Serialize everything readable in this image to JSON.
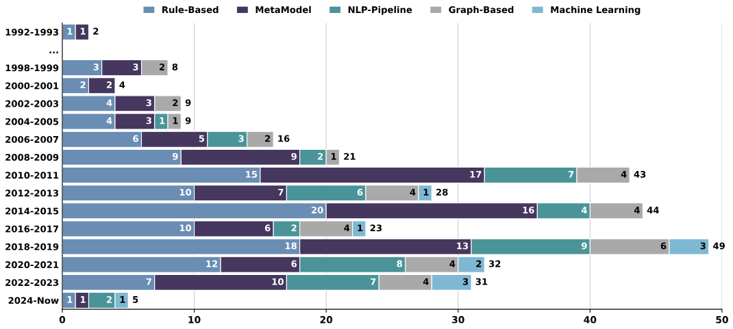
{
  "chart_data": {
    "type": "bar",
    "orientation": "horizontal",
    "stacked": true,
    "data_labels": true,
    "legend": "top",
    "grid": "x",
    "categories": [
      "1992-1993",
      "...",
      "1998-1999",
      "2000-2001",
      "2002-2003",
      "2004-2005",
      "2006-2007",
      "2008-2009",
      "2010-2011",
      "2012-2013",
      "2014-2015",
      "2016-2017",
      "2018-2019",
      "2020-2021",
      "2022-2023",
      "2024-Now"
    ],
    "series": [
      {
        "name": "Rule-Based",
        "color": "#6a8db3",
        "values": [
          1,
          null,
          3,
          2,
          4,
          4,
          6,
          9,
          15,
          10,
          20,
          10,
          18,
          12,
          7,
          1
        ]
      },
      {
        "name": "MetaModel",
        "color": "#45375e",
        "values": [
          1,
          null,
          3,
          2,
          3,
          3,
          5,
          9,
          17,
          7,
          16,
          6,
          13,
          6,
          10,
          1
        ]
      },
      {
        "name": "NLP-Pipeline",
        "color": "#4a9499",
        "values": [
          null,
          null,
          null,
          null,
          null,
          1,
          3,
          2,
          7,
          6,
          4,
          2,
          9,
          8,
          7,
          2
        ]
      },
      {
        "name": "Graph-Based",
        "color": "#a9a9a9",
        "values": [
          null,
          null,
          2,
          null,
          2,
          1,
          2,
          1,
          4,
          4,
          4,
          4,
          6,
          4,
          4,
          null
        ]
      },
      {
        "name": "Machine Learning",
        "color": "#7fb8d3",
        "values": [
          null,
          null,
          null,
          null,
          null,
          null,
          null,
          null,
          null,
          1,
          null,
          1,
          3,
          2,
          3,
          1
        ]
      }
    ],
    "totals": [
      "2",
      null,
      "8",
      "4",
      "9",
      "9",
      "16",
      "21",
      "43",
      "28",
      "44",
      "23",
      "49",
      "32",
      "31",
      "5"
    ],
    "xlim": [
      0,
      50
    ],
    "xticks": [
      0,
      10,
      20,
      30,
      40,
      50
    ]
  }
}
